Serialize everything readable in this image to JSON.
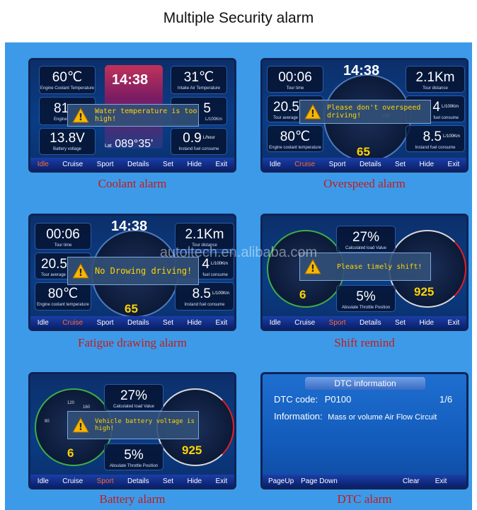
{
  "page_title": "Multiple Security alarm",
  "watermark": "autoltech.en.alibaba.com",
  "menu_default": [
    "Idle",
    "Cruise",
    "Sport",
    "Details",
    "Set",
    "Hide",
    "Exit"
  ],
  "colors": {
    "background": "#3d9ae8",
    "caption": "#c31b1b",
    "accent": "#ffd400",
    "active_menu": "#ff6a33"
  },
  "panels": {
    "coolant": {
      "caption": "Coolant alarm",
      "clock": "14:38",
      "coolant_temp": "60℃",
      "coolant_label": "Engine Coolant Temperature",
      "intake_temp": "31℃",
      "intake_label": "Intake Air Temperature",
      "engine_val": "81",
      "engine_label": "Engine",
      "fuel_val": "5",
      "fuel_unit": "L/100Km",
      "battery": "13.8V",
      "battery_label": "Battery voltage",
      "lat": "Lat",
      "lat_val": "089°35'",
      "instant_fuel": "0.9",
      "instant_unit": "L/hour",
      "instant_label": "Instand fuel consume",
      "alert": "Water temperature is too high!",
      "active_menu": "Idle"
    },
    "overspeed": {
      "caption": "Overspeed alarm",
      "clock": "14:38",
      "time": "00:06",
      "time_label": "Tour time",
      "distance": "2.1Km",
      "distance_label": "Tour distance",
      "avg": "20.5",
      "avg_label": "Tour average",
      "fuel": "4",
      "fuel_unit": "L/100Km",
      "fuel_label": "fuel consume",
      "coolant": "80℃",
      "coolant_label": "Engine coolant temperature",
      "instant": "8.5",
      "instant_unit": "L/100Km",
      "instant_label": "Instand fuel consume",
      "speed": "65",
      "gauge_mark": "240",
      "alert": "Please don't overspeed driving!",
      "active_menu": "Cruise"
    },
    "fatigue": {
      "caption": "Fatigue drawing alarm",
      "clock": "14:38",
      "time": "00:06",
      "time_label": "Tour time",
      "distance": "2.1Km",
      "distance_label": "Tour distance",
      "avg": "20.5",
      "avg_label": "Tour average",
      "fuel": "4",
      "fuel_unit": "L/100Km",
      "fuel_label": "fuel consume",
      "coolant": "80℃",
      "coolant_label": "Engine coolant temperature",
      "instant": "8.5",
      "instant_unit": "L/100Km",
      "instant_label": "Instand fuel consume",
      "speed": "65",
      "alert": "No Drowing driving!",
      "active_menu": "Cruise"
    },
    "shift": {
      "caption": "Shift remind",
      "load": "27%",
      "load_label": "Calculated load Value",
      "throttle": "5%",
      "throttle_label": "Absulate Throttle Position",
      "gear": "6",
      "rpm": "925",
      "alert": "Please timely shift!",
      "active_menu": "Sport"
    },
    "battery": {
      "caption": "Battery alarm",
      "load": "27%",
      "load_label": "Calculated load Value",
      "throttle": "5%",
      "throttle_label": "Absulate Throttle Position",
      "gear": "6",
      "rpm": "925",
      "gauge_marks": [
        "120",
        "160",
        "80"
      ],
      "alert": "Vehicle battery voltage is high!",
      "active_menu": "Sport"
    },
    "dtc": {
      "caption": "DTC alarm",
      "title": "DTC information",
      "code_label": "DTC code:",
      "code": "P0100",
      "page": "1/6",
      "info_label": "Information:",
      "info": "Mass or volume Air Flow Circuit",
      "menu": [
        "PageUp",
        "Page Down",
        "Clear",
        "Exit"
      ]
    }
  }
}
